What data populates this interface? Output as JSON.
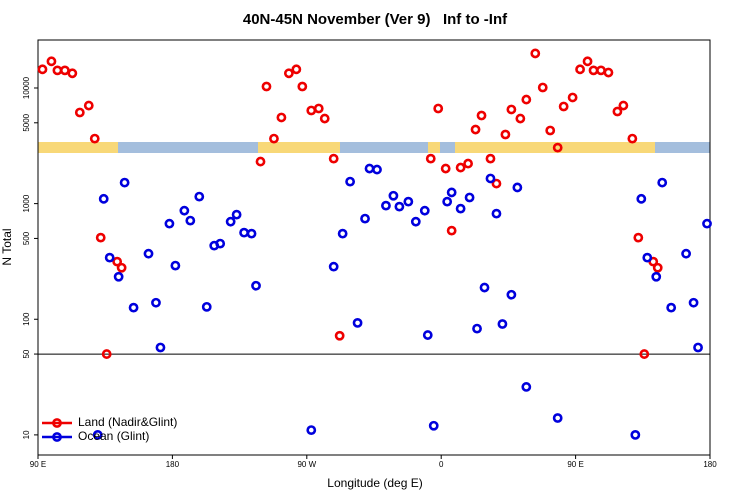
{
  "chart_data": {
    "type": "scatter",
    "title": "40N-45N November (Ver 9)   Inf to -Inf",
    "xlabel": "Longitude (deg E)",
    "ylabel": "N Total",
    "xlim": [
      90,
      540
    ],
    "xticks": [
      {
        "value": 90,
        "label": "90 E"
      },
      {
        "value": 180,
        "label": "180"
      },
      {
        "value": 270,
        "label": "90 W"
      },
      {
        "value": 360,
        "label": "0"
      },
      {
        "value": 450,
        "label": "90 E"
      },
      {
        "value": 540,
        "label": "180"
      }
    ],
    "ylim": [
      6.7,
      26000
    ],
    "yticks": [
      10,
      50,
      100,
      500,
      1000,
      5000,
      10000
    ],
    "log_y": true,
    "reference_line": 50,
    "legend": "bottom-left",
    "series": [
      {
        "name": "Land (Nadir&Glint)",
        "color": "#ee0000",
        "x": [
          93,
          99,
          103,
          108,
          113,
          118,
          124,
          128,
          132,
          136,
          143,
          146,
          239,
          243,
          248,
          253,
          258,
          263,
          267,
          273,
          278,
          282,
          288,
          292,
          353,
          358,
          363,
          367,
          373,
          378,
          383,
          387,
          393,
          397,
          403,
          407,
          413,
          417,
          423,
          428,
          433,
          438,
          442,
          448,
          453,
          458,
          462,
          467,
          472,
          478,
          482,
          488,
          492,
          496,
          502,
          505
        ],
        "values": [
          14500,
          17000,
          14200,
          14200,
          13400,
          6140,
          7050,
          3650,
          508,
          50,
          315,
          279,
          2310,
          10300,
          3650,
          5560,
          13400,
          14500,
          10300,
          6390,
          6650,
          5440,
          2450,
          72,
          2450,
          6650,
          2010,
          584,
          2050,
          2220,
          4370,
          5780,
          2450,
          1490,
          3960,
          6520,
          5440,
          7940,
          19900,
          10100,
          4290,
          3050,
          6920,
          8280,
          14500,
          17000,
          14200,
          14200,
          13600,
          6260,
          7050,
          3650,
          508,
          50,
          315,
          279
        ]
      },
      {
        "name": "Ocean (Glint)",
        "color": "#0000dd",
        "x": [
          130,
          134,
          138,
          144,
          148,
          154,
          164,
          169,
          172,
          178,
          182,
          188,
          192,
          198,
          203,
          208,
          212,
          219,
          223,
          228,
          233,
          236,
          273,
          288,
          294,
          299,
          304,
          309,
          312,
          317,
          323,
          328,
          332,
          338,
          343,
          349,
          351,
          355,
          364,
          367,
          373,
          379,
          384,
          389,
          393,
          397,
          401,
          407,
          411,
          417,
          438,
          490,
          494,
          498,
          504,
          508,
          514,
          524,
          529,
          532,
          538
        ],
        "values": [
          10,
          1100,
          341,
          233,
          1520,
          126,
          369,
          139,
          57,
          671,
          291,
          869,
          713,
          1150,
          128,
          433,
          451,
          698,
          803,
          561,
          550,
          195,
          11,
          285,
          550,
          1550,
          93,
          742,
          2010,
          1970,
          961,
          1170,
          942,
          1040,
          698,
          869,
          73,
          12,
          1040,
          1250,
          905,
          1130,
          83,
          188,
          1650,
          819,
          91,
          163,
          1380,
          26,
          14,
          10,
          1100,
          341,
          233,
          1520,
          126,
          369,
          139,
          57,
          671
        ]
      }
    ]
  }
}
